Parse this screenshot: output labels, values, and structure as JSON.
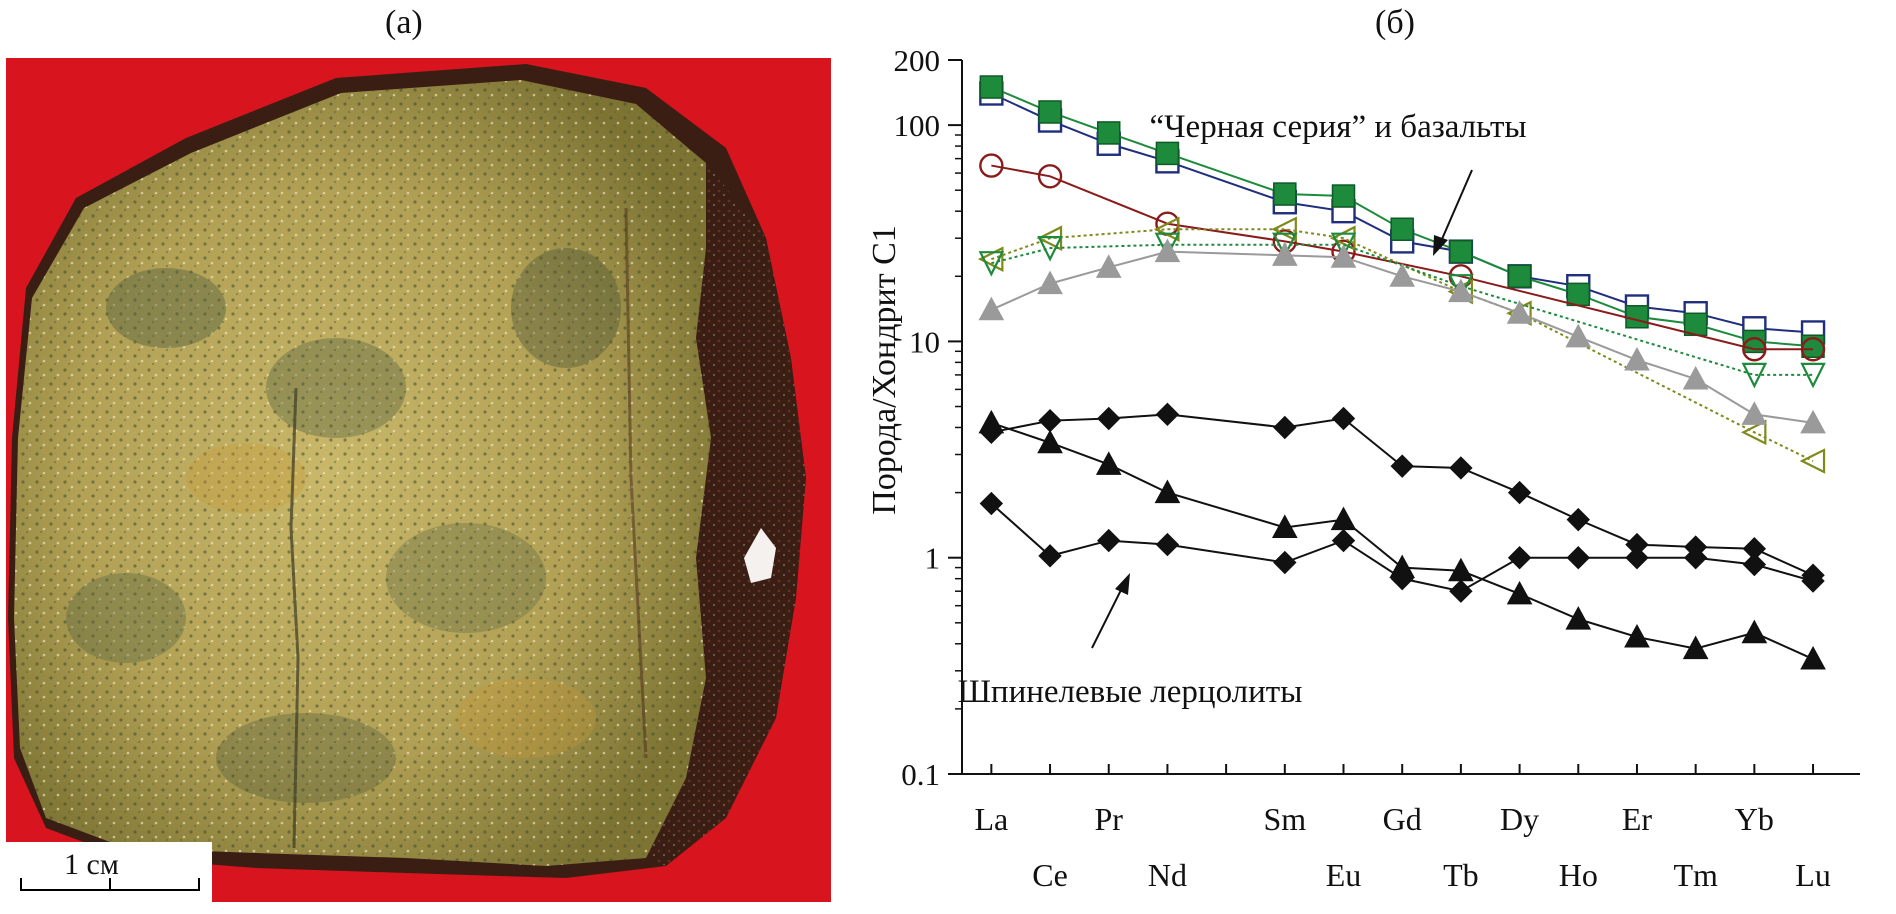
{
  "panels": {
    "a": {
      "label": "(а)",
      "scale_bar": "1 см"
    },
    "b": {
      "label": "(б)"
    }
  },
  "colors": {
    "photo_background": "#d8141f",
    "rock_base": "#b7a659",
    "rock_rind": "#3a1e14",
    "blue_open_square": "#1f2e7d",
    "green_filled_square": "#1d8a3c",
    "darkred_open_circle": "#8a1b1b",
    "olive_open_triangle": "#7f8a1a",
    "green_open_triangle": "#1d8a3c",
    "gray_triangle": "#9a9a9a",
    "black": "#111111"
  },
  "chart_data": {
    "type": "line",
    "y_scale": "log",
    "ylim": [
      0.1,
      200
    ],
    "ylabel": "Порода/Хондрит С1",
    "y_ticks": [
      "0.1",
      "1",
      "10",
      "100",
      "200"
    ],
    "categories": [
      "La",
      "Ce",
      "Pr",
      "Nd",
      "Sm",
      "Eu",
      "Gd",
      "Tb",
      "Dy",
      "Ho",
      "Er",
      "Tm",
      "Yb",
      "Lu"
    ],
    "x_positions": [
      0,
      1,
      2,
      3,
      5,
      6,
      7,
      8,
      9,
      10,
      11,
      12,
      13,
      14
    ],
    "annotations": [
      {
        "text": "“Черная серия” и базальты"
      },
      {
        "text": "Шпинелевые лерцолиты"
      }
    ],
    "series": [
      {
        "marker": "square-open",
        "color": "#1f2e7d",
        "style": "solid",
        "points": [
          [
            "La",
            140
          ],
          [
            "Ce",
            105
          ],
          [
            "Pr",
            82
          ],
          [
            "Nd",
            68
          ],
          [
            "Sm",
            44
          ],
          [
            "Eu",
            40
          ],
          [
            "Gd",
            29
          ],
          [
            "Tb",
            26
          ],
          [
            "Dy",
            20
          ],
          [
            "Ho",
            18
          ],
          [
            "Er",
            14.5
          ],
          [
            "Tm",
            13.5
          ],
          [
            "Yb",
            11.5
          ],
          [
            "Lu",
            11
          ]
        ]
      },
      {
        "marker": "square-filled",
        "color": "#1d8a3c",
        "style": "solid",
        "points": [
          [
            "La",
            150
          ],
          [
            "Ce",
            115
          ],
          [
            "Pr",
            92
          ],
          [
            "Nd",
            74
          ],
          [
            "Sm",
            48
          ],
          [
            "Eu",
            47
          ],
          [
            "Gd",
            33
          ],
          [
            "Tb",
            26
          ],
          [
            "Dy",
            20
          ],
          [
            "Ho",
            16.5
          ],
          [
            "Er",
            13
          ],
          [
            "Tm",
            12
          ],
          [
            "Yb",
            10
          ],
          [
            "Lu",
            9.5
          ]
        ]
      },
      {
        "marker": "circle-open",
        "color": "#8a1b1b",
        "style": "solid",
        "points": [
          [
            "La",
            65
          ],
          [
            "Ce",
            58
          ],
          [
            "Nd",
            35
          ],
          [
            "Sm",
            29
          ],
          [
            "Eu",
            26
          ],
          [
            "Tb",
            20
          ],
          [
            "Yb",
            9.2
          ],
          [
            "Lu",
            9.2
          ]
        ]
      },
      {
        "marker": "triangle-left-open",
        "color": "#7f8a1a",
        "style": "dotted",
        "points": [
          [
            "La",
            24
          ],
          [
            "Ce",
            30
          ],
          [
            "Nd",
            33
          ],
          [
            "Sm",
            33
          ],
          [
            "Eu",
            30
          ],
          [
            "Tb",
            17
          ],
          [
            "Dy",
            13.5
          ],
          [
            "Yb",
            3.8
          ],
          [
            "Lu",
            2.8
          ]
        ]
      },
      {
        "marker": "triangle-down-open",
        "color": "#1d8a3c",
        "style": "dotted",
        "points": [
          [
            "La",
            23
          ],
          [
            "Ce",
            27
          ],
          [
            "Nd",
            28
          ],
          [
            "Sm",
            28
          ],
          [
            "Eu",
            28
          ],
          [
            "Tb",
            18
          ],
          [
            "Yb",
            7
          ],
          [
            "Lu",
            7
          ]
        ]
      },
      {
        "marker": "triangle-filled",
        "color": "#9a9a9a",
        "style": "solid",
        "points": [
          [
            "La",
            14
          ],
          [
            "Ce",
            18.5
          ],
          [
            "Pr",
            22
          ],
          [
            "Nd",
            26
          ],
          [
            "Sm",
            25
          ],
          [
            "Eu",
            24.5
          ],
          [
            "Gd",
            20
          ],
          [
            "Tb",
            17
          ],
          [
            "Dy",
            13.5
          ],
          [
            "Ho",
            10.5
          ],
          [
            "Er",
            8.2
          ],
          [
            "Tm",
            6.7
          ],
          [
            "Yb",
            4.6
          ],
          [
            "Lu",
            4.2
          ]
        ]
      },
      {
        "marker": "diamond-filled",
        "color": "#111111",
        "style": "solid",
        "points": [
          [
            "La",
            3.8
          ],
          [
            "Ce",
            4.3
          ],
          [
            "Pr",
            4.4
          ],
          [
            "Nd",
            4.6
          ],
          [
            "Sm",
            4.0
          ],
          [
            "Eu",
            4.4
          ],
          [
            "Gd",
            2.65
          ],
          [
            "Tb",
            2.6
          ],
          [
            "Dy",
            2.0
          ],
          [
            "Ho",
            1.5
          ],
          [
            "Er",
            1.15
          ],
          [
            "Tm",
            1.12
          ],
          [
            "Yb",
            1.1
          ],
          [
            "Lu",
            0.83
          ]
        ]
      },
      {
        "marker": "triangle-filled",
        "color": "#111111",
        "style": "solid",
        "points": [
          [
            "La",
            4.2
          ],
          [
            "Ce",
            3.4
          ],
          [
            "Pr",
            2.7
          ],
          [
            "Nd",
            2.0
          ],
          [
            "Sm",
            1.38
          ],
          [
            "Eu",
            1.5
          ],
          [
            "Gd",
            0.9
          ],
          [
            "Tb",
            0.87
          ],
          [
            "Dy",
            0.68
          ],
          [
            "Ho",
            0.52
          ],
          [
            "Er",
            0.43
          ],
          [
            "Tm",
            0.38
          ],
          [
            "Yb",
            0.45
          ],
          [
            "Lu",
            0.34
          ]
        ]
      },
      {
        "marker": "diamond-filled",
        "color": "#111111",
        "style": "solid",
        "points": [
          [
            "La",
            1.78
          ],
          [
            "Ce",
            1.02
          ],
          [
            "Pr",
            1.2
          ],
          [
            "Nd",
            1.15
          ],
          [
            "Sm",
            0.95
          ],
          [
            "Eu",
            1.2
          ],
          [
            "Gd",
            0.8
          ],
          [
            "Tb",
            0.7
          ],
          [
            "Dy",
            1.0
          ],
          [
            "Ho",
            1.0
          ],
          [
            "Er",
            1.0
          ],
          [
            "Tm",
            1.0
          ],
          [
            "Yb",
            0.93
          ],
          [
            "Lu",
            0.78
          ]
        ]
      }
    ]
  }
}
